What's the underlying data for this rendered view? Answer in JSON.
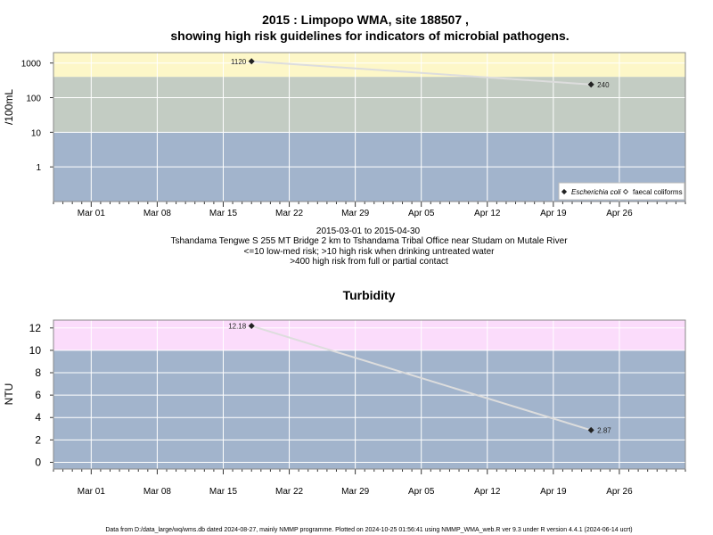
{
  "title_line1": "2015 : Limpopo WMA, site 188507 ,",
  "title_line2": "showing high risk guidelines for indicators of microbial pathogens.",
  "x_tick_labels": [
    "Mar 01",
    "Mar 08",
    "Mar 15",
    "Mar 22",
    "Mar 29",
    "Apr 05",
    "Apr 12",
    "Apr 19",
    "Apr 26"
  ],
  "subtitle_lines": [
    "2015-03-01 to 2015-04-30",
    "Tshandama Tengwe S 255 MT Bridge 2 km to Tshandama Tribal Office near Studam on Mutale River",
    "<=10 low-med risk; >10 high risk when drinking untreated water",
    ">400 high risk from full or partial contact"
  ],
  "footer": "Data from D:/data_large/wq/wms.db dated 2024-08-27, mainly NMMP programme. Plotted on 2024-10-25 01:56:41 using NMMP_WMA_web.R ver 9.3 under R version 4.4.1 (2024-06-14 ucrt)",
  "colors": {
    "band_low": "#a2b4cc",
    "band_mid": "#c3ccc3",
    "band_high_micro": "#fdf7c8",
    "band_high_turb": "#fbdcfb",
    "line": "#dddddd",
    "point": "#222222",
    "grid": "#ffffff"
  },
  "chart_data": [
    {
      "type": "line",
      "ylabel": "/100mL",
      "y_scale": "log",
      "y_ticks": [
        1,
        10,
        100,
        1000
      ],
      "y_tick_labels": [
        "1",
        "10",
        "100",
        "1000"
      ],
      "xlim": [
        "2015-02-25",
        "2015-05-03"
      ],
      "bands": [
        {
          "from": 0.1,
          "to": 10,
          "color": "band_low"
        },
        {
          "from": 10,
          "to": 400,
          "color": "band_mid"
        },
        {
          "from": 400,
          "to": 2000,
          "color": "band_high_micro"
        }
      ],
      "legend_position": "bottom-right",
      "legend": [
        {
          "marker": "filled-diamond",
          "label": "Escherichia coli"
        },
        {
          "marker": "open-diamond",
          "label": "faecal coliforms"
        }
      ],
      "series": [
        {
          "name": "Escherichia coli",
          "x": [
            "2015-03-18",
            "2015-04-23"
          ],
          "y": [
            1120,
            240
          ],
          "point_labels": [
            "1120",
            "240"
          ]
        }
      ]
    },
    {
      "type": "line",
      "title": "Turbidity",
      "ylabel": "NTU",
      "y_scale": "linear",
      "ylim": [
        -0.6,
        12.7
      ],
      "y_ticks": [
        0,
        2,
        4,
        6,
        8,
        10,
        12
      ],
      "y_tick_labels": [
        "0",
        "2",
        "4",
        "6",
        "8",
        "10",
        "12"
      ],
      "xlim": [
        "2015-02-25",
        "2015-05-03"
      ],
      "bands": [
        {
          "from": -0.6,
          "to": 10,
          "color": "band_low"
        },
        {
          "from": 10,
          "to": 12.7,
          "color": "band_high_turb"
        }
      ],
      "series": [
        {
          "name": "Turbidity",
          "x": [
            "2015-03-18",
            "2015-04-23"
          ],
          "y": [
            12.18,
            2.87
          ],
          "point_labels": [
            "12.18",
            "2.87"
          ]
        }
      ]
    }
  ]
}
